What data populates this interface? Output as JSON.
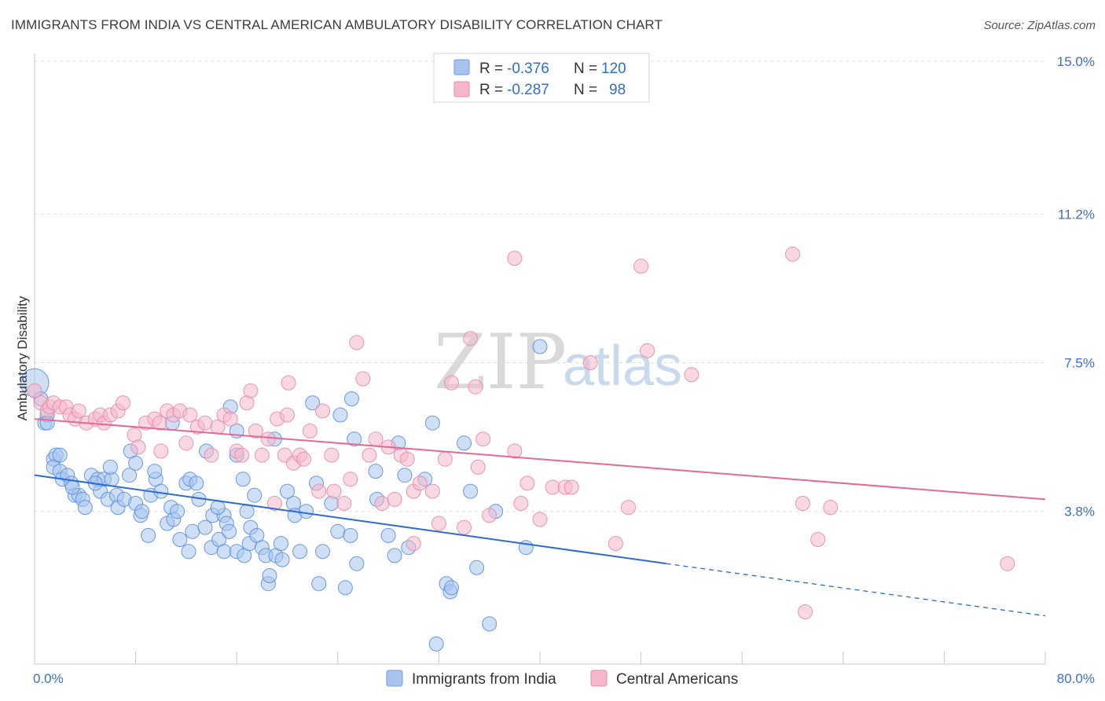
{
  "title": "IMMIGRANTS FROM INDIA VS CENTRAL AMERICAN AMBULATORY DISABILITY CORRELATION CHART",
  "source": "Source: ZipAtlas.com",
  "watermark": {
    "zip": "ZIP",
    "atlas": "atlas"
  },
  "legend_top": [
    {
      "r_label": "R =",
      "r_value": "-0.376",
      "n_label": "N =",
      "n_value": "120",
      "color": "#a8c4ee"
    },
    {
      "r_label": "R =",
      "r_value": "-0.287",
      "n_label": "N =",
      "n_value": "98",
      "color": "#f5b8cb"
    }
  ],
  "chart_data": {
    "type": "scatter",
    "title": "IMMIGRANTS FROM INDIA VS CENTRAL AMERICAN AMBULATORY DISABILITY CORRELATION CHART",
    "xlabel": "",
    "ylabel": "Ambulatory Disability",
    "xlim": [
      0,
      80
    ],
    "ylim": [
      0,
      15
    ],
    "x_tick_labels": [
      "0.0%",
      "80.0%"
    ],
    "y_ticks": [
      3.8,
      7.5,
      11.2,
      15.0
    ],
    "y_tick_labels": [
      "3.8%",
      "7.5%",
      "11.2%",
      "15.0%"
    ],
    "grid": true,
    "legend_position": "bottom-center",
    "series": [
      {
        "name": "Immigrants from India",
        "color": "#5b8ee0",
        "fill": "#a8c4ee",
        "trend": {
          "x0": 0,
          "y0": 4.7,
          "x1": 50,
          "y1": 2.5,
          "dash_to_x": 80,
          "dash_to_y": 1.2,
          "color": "#2b6cd1"
        },
        "points": [
          [
            0,
            7.0
          ],
          [
            0.5,
            6.6
          ],
          [
            0.8,
            6.0
          ],
          [
            1.0,
            6.2
          ],
          [
            1,
            6.0
          ],
          [
            1.5,
            5.1
          ],
          [
            1.7,
            5.2
          ],
          [
            1.5,
            4.9
          ],
          [
            2,
            4.8
          ],
          [
            2.2,
            4.6
          ],
          [
            2.6,
            4.7
          ],
          [
            2.9,
            4.5
          ],
          [
            3.2,
            4.2
          ],
          [
            3.5,
            4.2
          ],
          [
            3.8,
            4.1
          ],
          [
            4.0,
            3.9
          ],
          [
            4.5,
            4.7
          ],
          [
            5.2,
            4.3
          ],
          [
            5.0,
            4.6
          ],
          [
            5.5,
            4.6
          ],
          [
            5.8,
            4.1
          ],
          [
            6.1,
            4.6
          ],
          [
            6.5,
            4.2
          ],
          [
            6.6,
            3.9
          ],
          [
            7.1,
            4.1
          ],
          [
            7.5,
            4.7
          ],
          [
            7.6,
            5.3
          ],
          [
            8.0,
            4.0
          ],
          [
            8.4,
            3.7
          ],
          [
            8.5,
            3.8
          ],
          [
            9.0,
            3.2
          ],
          [
            9.2,
            4.2
          ],
          [
            9.6,
            4.6
          ],
          [
            10.0,
            4.3
          ],
          [
            10.5,
            3.5
          ],
          [
            10.8,
            3.9
          ],
          [
            10.9,
            6.0
          ],
          [
            11.0,
            3.6
          ],
          [
            11.3,
            3.8
          ],
          [
            11.5,
            3.1
          ],
          [
            12.0,
            4.5
          ],
          [
            12.3,
            4.6
          ],
          [
            12.2,
            2.8
          ],
          [
            12.5,
            3.3
          ],
          [
            12.8,
            4.5
          ],
          [
            13.0,
            4.1
          ],
          [
            13.5,
            3.4
          ],
          [
            13.6,
            5.3
          ],
          [
            14.0,
            2.9
          ],
          [
            14.1,
            3.7
          ],
          [
            14.6,
            3.1
          ],
          [
            15.0,
            3.7
          ],
          [
            15.2,
            3.5
          ],
          [
            15.4,
            3.3
          ],
          [
            15.5,
            6.4
          ],
          [
            15.0,
            2.8
          ],
          [
            16.0,
            2.8
          ],
          [
            16.0,
            5.8
          ],
          [
            16.5,
            4.6
          ],
          [
            16.6,
            2.7
          ],
          [
            16.8,
            3.8
          ],
          [
            17.0,
            3.0
          ],
          [
            17.1,
            3.4
          ],
          [
            17.4,
            4.2
          ],
          [
            17.6,
            3.2
          ],
          [
            18.0,
            2.9
          ],
          [
            18.3,
            2.7
          ],
          [
            18.5,
            2.0
          ],
          [
            18.6,
            2.2
          ],
          [
            19.0,
            5.6
          ],
          [
            19.1,
            2.7
          ],
          [
            19.5,
            3.0
          ],
          [
            19.6,
            2.6
          ],
          [
            20.5,
            4.0
          ],
          [
            20.6,
            3.7
          ],
          [
            21.0,
            2.8
          ],
          [
            21.5,
            3.8
          ],
          [
            22.0,
            6.5
          ],
          [
            22.3,
            4.5
          ],
          [
            22.5,
            2.0
          ],
          [
            22.8,
            2.8
          ],
          [
            23.5,
            4.0
          ],
          [
            24.0,
            3.3
          ],
          [
            24.2,
            6.2
          ],
          [
            24.6,
            1.9
          ],
          [
            25.0,
            3.2
          ],
          [
            25.1,
            6.6
          ],
          [
            25.3,
            5.6
          ],
          [
            25.5,
            2.5
          ],
          [
            27.0,
            4.8
          ],
          [
            27.1,
            4.1
          ],
          [
            28.0,
            3.2
          ],
          [
            28.5,
            2.7
          ],
          [
            28.8,
            5.5
          ],
          [
            29.3,
            4.7
          ],
          [
            29.6,
            2.9
          ],
          [
            30.9,
            4.6
          ],
          [
            31.5,
            6.0
          ],
          [
            31.8,
            0.5
          ],
          [
            32.6,
            2.0
          ],
          [
            32.9,
            1.8
          ],
          [
            33.0,
            1.9
          ],
          [
            34.0,
            5.5
          ],
          [
            34.5,
            4.3
          ],
          [
            35.0,
            2.4
          ],
          [
            36.0,
            1.0
          ],
          [
            36.5,
            3.8
          ],
          [
            38.9,
            2.9
          ],
          [
            40.0,
            7.9
          ],
          [
            16.0,
            5.2
          ],
          [
            8.0,
            5.0
          ],
          [
            6.0,
            4.9
          ],
          [
            3.0,
            4.4
          ],
          [
            9.5,
            4.8
          ],
          [
            4.8,
            4.5
          ],
          [
            2.0,
            5.2
          ],
          [
            14.5,
            3.9
          ],
          [
            20.0,
            4.3
          ]
        ]
      },
      {
        "name": "Central Americans",
        "color": "#e88aa8",
        "fill": "#f5b8cb",
        "trend": {
          "x0": 0,
          "y0": 6.1,
          "x1": 80,
          "y1": 4.1,
          "color": "#e46a93"
        },
        "points": [
          [
            0,
            6.8
          ],
          [
            0.5,
            6.5
          ],
          [
            1.0,
            6.3
          ],
          [
            1.2,
            6.4
          ],
          [
            1.5,
            6.5
          ],
          [
            2.0,
            6.4
          ],
          [
            2.5,
            6.4
          ],
          [
            2.8,
            6.2
          ],
          [
            3.2,
            6.1
          ],
          [
            3.5,
            6.3
          ],
          [
            4.1,
            6.0
          ],
          [
            4.8,
            6.1
          ],
          [
            5.2,
            6.2
          ],
          [
            5.5,
            6.0
          ],
          [
            6.0,
            6.2
          ],
          [
            6.6,
            6.3
          ],
          [
            7.0,
            6.5
          ],
          [
            7.9,
            5.7
          ],
          [
            8.2,
            5.4
          ],
          [
            8.8,
            6.0
          ],
          [
            9.5,
            6.1
          ],
          [
            9.9,
            6.0
          ],
          [
            10.0,
            5.3
          ],
          [
            10.5,
            6.3
          ],
          [
            11.0,
            6.2
          ],
          [
            11.5,
            6.3
          ],
          [
            12.0,
            5.5
          ],
          [
            12.3,
            6.2
          ],
          [
            12.9,
            5.9
          ],
          [
            13.5,
            6.0
          ],
          [
            14.0,
            5.2
          ],
          [
            14.5,
            5.9
          ],
          [
            15.0,
            6.2
          ],
          [
            15.5,
            6.1
          ],
          [
            16.0,
            5.3
          ],
          [
            16.4,
            5.2
          ],
          [
            16.8,
            6.5
          ],
          [
            17.1,
            6.8
          ],
          [
            17.5,
            5.8
          ],
          [
            18.0,
            5.2
          ],
          [
            18.5,
            5.6
          ],
          [
            19.0,
            4.0
          ],
          [
            19.2,
            6.1
          ],
          [
            19.8,
            5.2
          ],
          [
            20.0,
            6.2
          ],
          [
            20.1,
            7.0
          ],
          [
            20.5,
            5.0
          ],
          [
            21.0,
            5.2
          ],
          [
            21.3,
            5.1
          ],
          [
            21.8,
            5.8
          ],
          [
            22.5,
            4.3
          ],
          [
            22.8,
            6.3
          ],
          [
            23.5,
            5.2
          ],
          [
            23.7,
            4.3
          ],
          [
            24.5,
            4.0
          ],
          [
            25.0,
            4.6
          ],
          [
            25.5,
            8.0
          ],
          [
            26.0,
            7.1
          ],
          [
            26.5,
            5.2
          ],
          [
            27.0,
            5.6
          ],
          [
            27.5,
            4.0
          ],
          [
            28.0,
            5.4
          ],
          [
            28.5,
            4.1
          ],
          [
            29.0,
            5.2
          ],
          [
            29.5,
            5.1
          ],
          [
            30.0,
            4.3
          ],
          [
            30.5,
            4.5
          ],
          [
            31.5,
            4.3
          ],
          [
            32.0,
            3.5
          ],
          [
            32.5,
            5.1
          ],
          [
            33.0,
            7.0
          ],
          [
            34.0,
            3.4
          ],
          [
            34.5,
            8.1
          ],
          [
            34.9,
            6.9
          ],
          [
            35.1,
            4.9
          ],
          [
            35.5,
            5.6
          ],
          [
            36.0,
            3.7
          ],
          [
            38.0,
            5.3
          ],
          [
            38.5,
            4.0
          ],
          [
            39.0,
            4.5
          ],
          [
            40.0,
            3.6
          ],
          [
            41.0,
            4.4
          ],
          [
            42.0,
            4.4
          ],
          [
            42.5,
            4.4
          ],
          [
            44.0,
            7.5
          ],
          [
            46.0,
            3.0
          ],
          [
            47.0,
            3.9
          ],
          [
            48.5,
            7.8
          ],
          [
            52.0,
            7.2
          ],
          [
            60.0,
            10.2
          ],
          [
            61.0,
            1.3
          ],
          [
            60.8,
            4.0
          ],
          [
            62.0,
            3.1
          ],
          [
            63.0,
            3.9
          ],
          [
            77.0,
            2.5
          ],
          [
            38.0,
            10.1
          ],
          [
            48.0,
            9.9
          ],
          [
            30.0,
            3.0
          ]
        ]
      }
    ]
  }
}
